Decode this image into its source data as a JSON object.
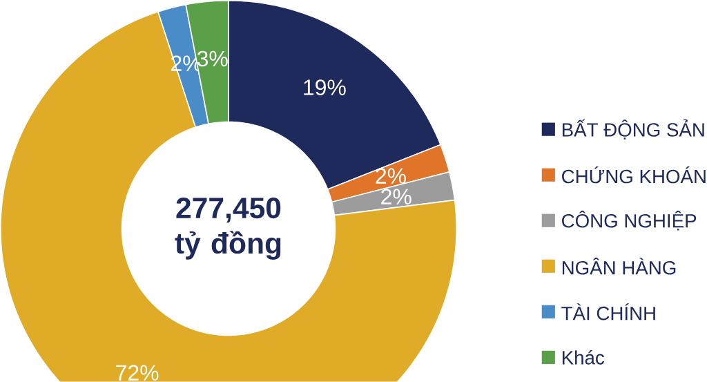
{
  "chart_data": {
    "type": "donut",
    "categories": [
      "BẤT ĐỘNG SẢN",
      "CHỨNG KHOÁN",
      "CÔNG NGHIỆP",
      "NGÂN HÀNG",
      "TÀI CHÍNH",
      "Khác"
    ],
    "values": [
      19,
      2,
      2,
      72,
      2,
      3
    ],
    "colors": [
      "#1f2a5c",
      "#e07428",
      "#9c9c9c",
      "#e0ac28",
      "#4a8cc8",
      "#5aa048"
    ],
    "value_labels": [
      "19%",
      "2%",
      "2%",
      "72%",
      "2%",
      "3%"
    ],
    "legend": "right",
    "annotations": [
      "277,450 tỷ đồng"
    ]
  }
}
